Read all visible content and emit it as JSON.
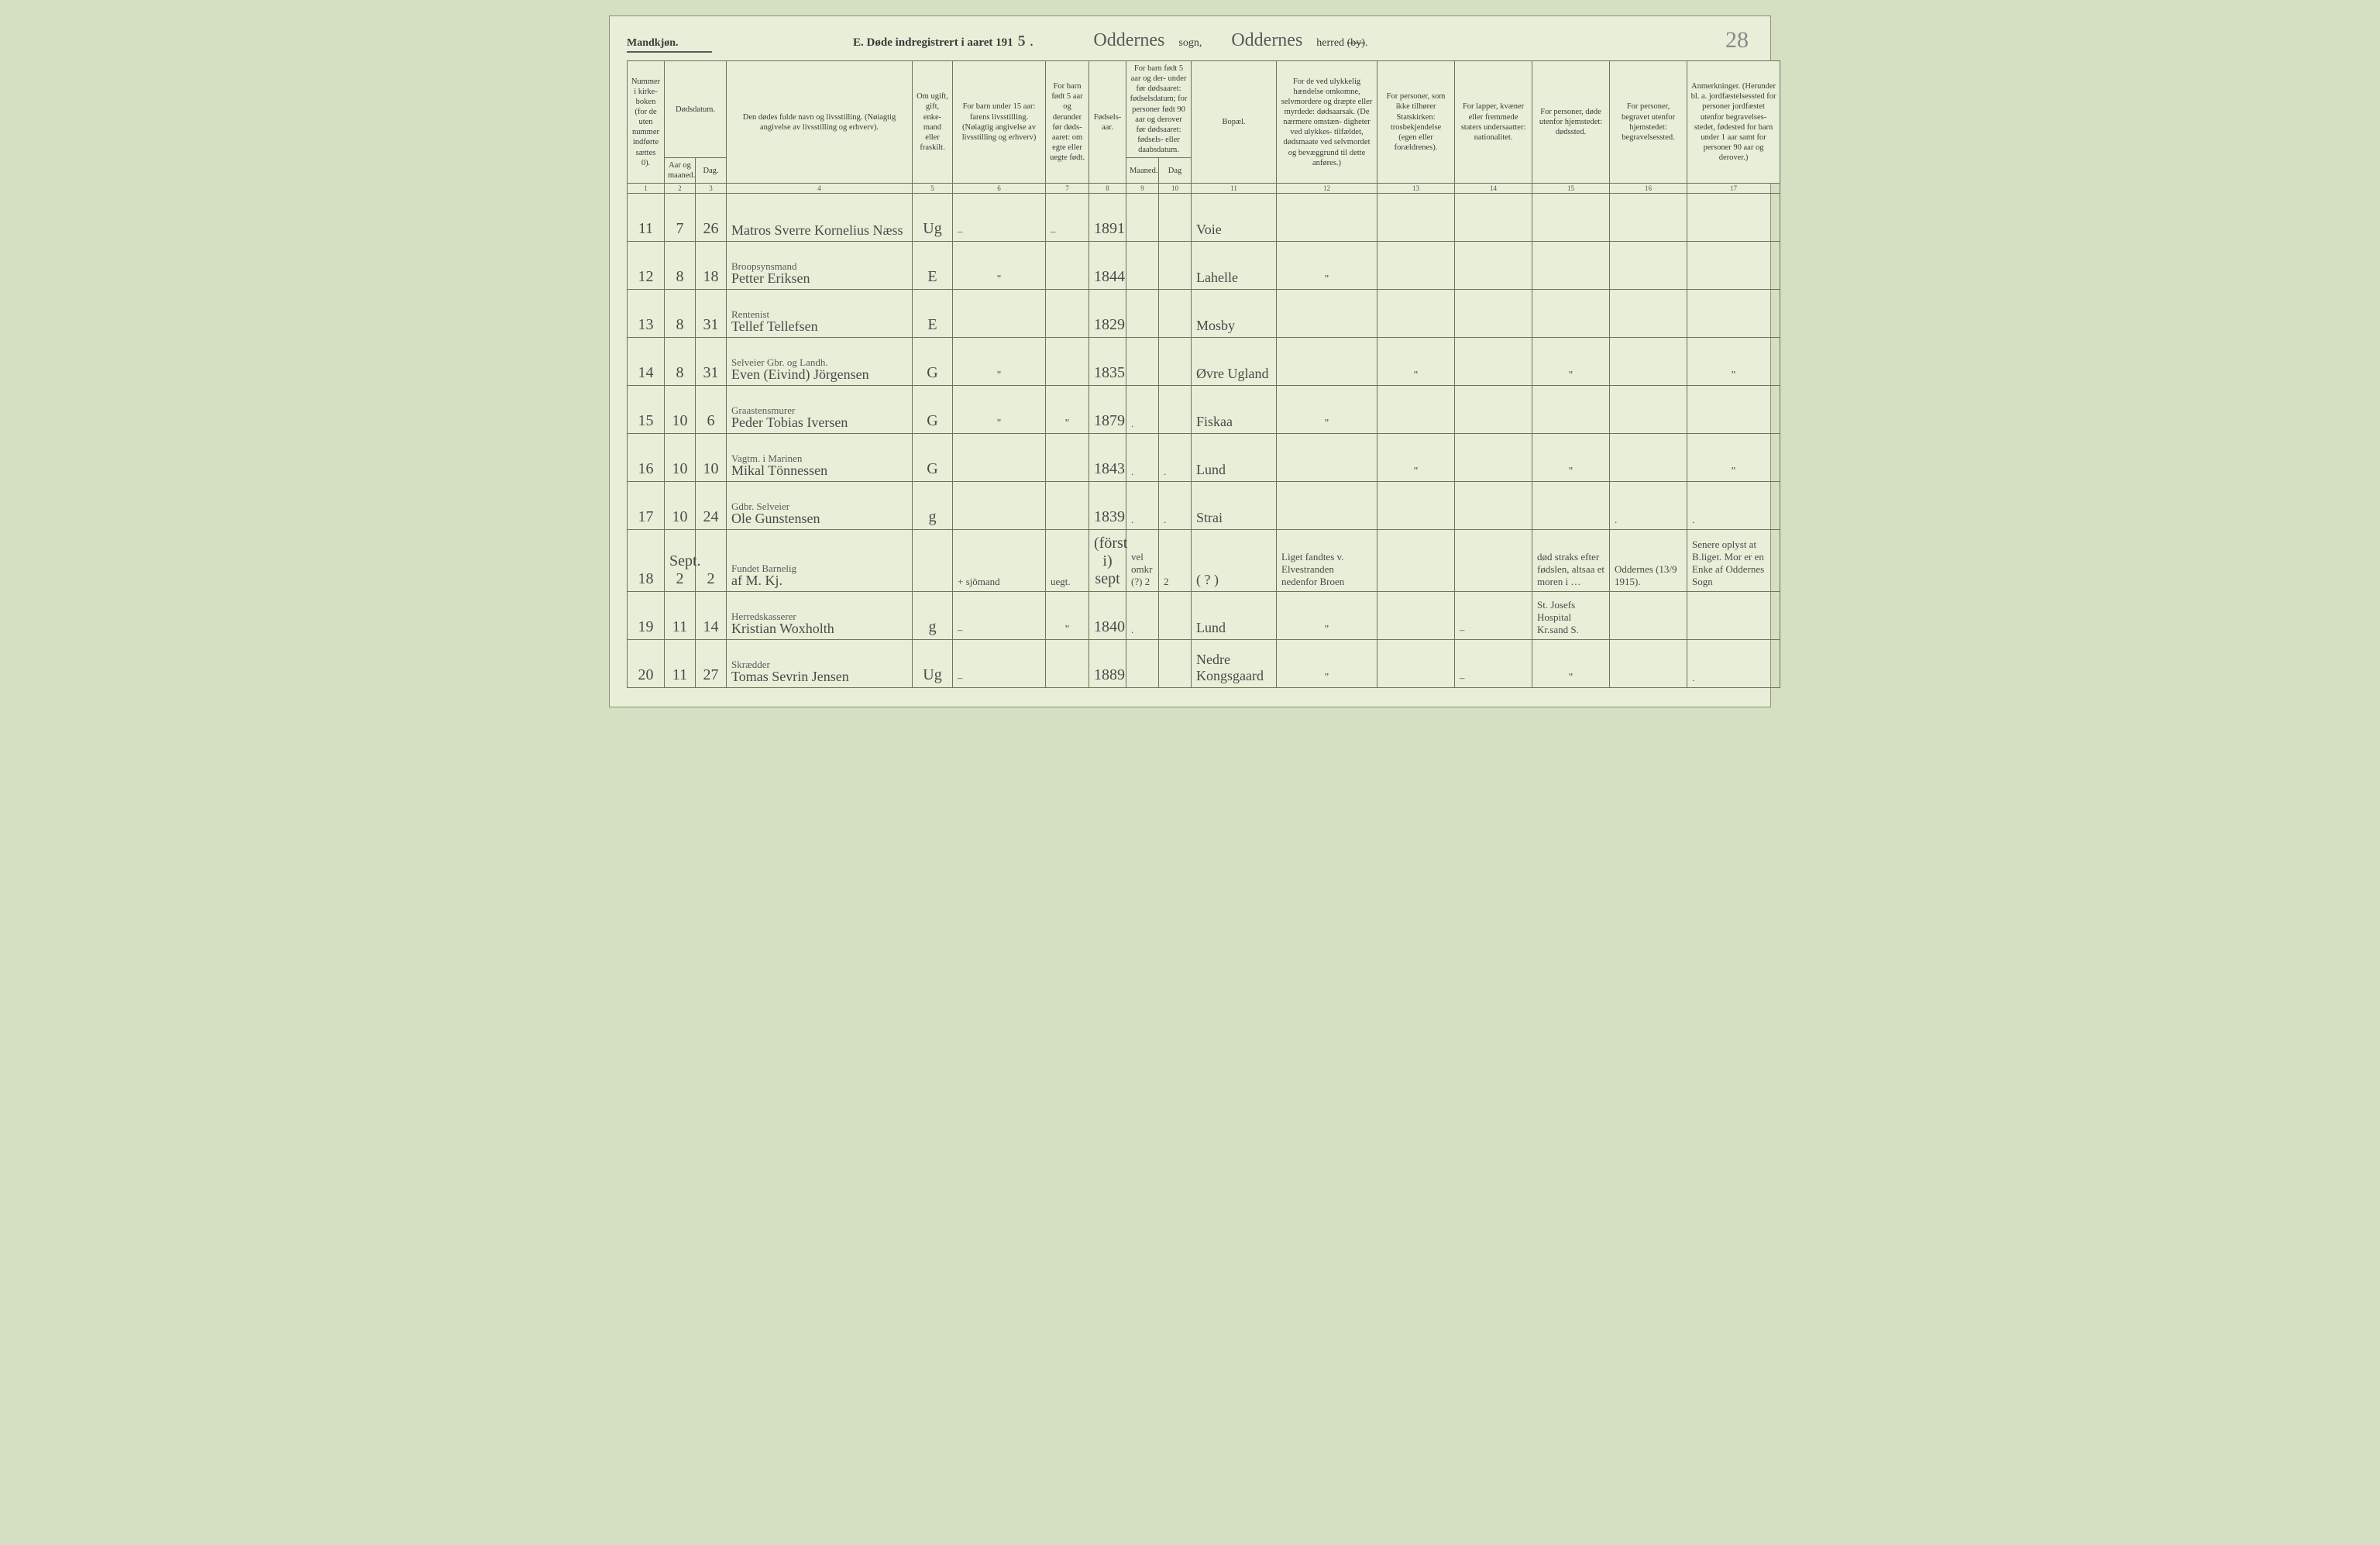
{
  "header": {
    "gender": "Mandkjøn.",
    "section_letter": "E.",
    "title_prefix": "Døde indregistrert i aaret 191",
    "year_suffix": "5",
    "parish_script": "Oddernes",
    "parish_label": "sogn,",
    "district_script": "Oddernes",
    "district_label_a": "herred",
    "district_label_strike": "(by)",
    "page_number": "28"
  },
  "columns": {
    "c1": "Nummer i kirke-\nboken (for de uten nummer indførte sættes 0).",
    "c2_3_top": "Dødsdatum.",
    "c2": "Aar og maaned.",
    "c3": "Dag.",
    "c4": "Den dødes fulde navn og livsstilling.\n(Nøiagtig angivelse av livsstilling og erhverv).",
    "c5": "Om ugift, gift, enke-\nmand eller fraskilt.",
    "c6": "For barn under 15 aar:\nfarens livsstilling.\n(Nøiagtig angivelse av livsstilling og erhverv)",
    "c7": "For barn født 5 aar og derunder før døds-\naaret: om egte eller uegte født.",
    "c8": "Fødsels-\naar.",
    "c9_10_top": "For barn født 5 aar og der-\nunder før dødsaaret:\nfødselsdatum;\nfor personer født 90 aar og derover før dødsaaret:\nfødsels- eller daabsdatum.",
    "c9": "Maaned.",
    "c10": "Dag",
    "c11": "Bopæl.",
    "c12": "For de ved ulykkelig hændelse omkomne, selvmordere og dræpte eller myrdede:\ndødsaarsak.\n(De nærmere omstæn-\ndigheter ved ulykkes-\ntilfældet, dødsmaate ved selvmordet og bevæggrund til dette anføres.)",
    "c13": "For personer, som ikke tilhører Statskirken:\ntrosbekjendelse\n(egen eller forældrenes).",
    "c14": "For lapper, kvæner eller fremmede staters undersaatter:\nnationalitet.",
    "c15": "For personer, døde utenfor hjemstedet:\ndødssted.",
    "c16": "For personer, begravet utenfor hjemstedet:\nbegravelsessted.",
    "c17": "Anmerkninger.\n(Herunder bl. a. jordfæstelsessted for personer jordfæstet utenfor begravelses-\nstedet, fødested for barn under 1 aar samt for personer 90 aar og derover.)"
  },
  "colnums": [
    "1",
    "2",
    "3",
    "4",
    "5",
    "6",
    "7",
    "8",
    "9",
    "10",
    "11",
    "12",
    "13",
    "14",
    "15",
    "16",
    "17"
  ],
  "rows": [
    {
      "n": "11",
      "mth": "7",
      "day": "26",
      "occ": "",
      "name": "Matros Sverre Kornelius Næss",
      "ms": "Ug",
      "c6": "–",
      "c7": "–",
      "year": "1891",
      "c9": "",
      "c10": "",
      "place": "Voie",
      "c12": "",
      "c13": "",
      "c14": "",
      "c15": "",
      "c16": "",
      "c17": ""
    },
    {
      "n": "12",
      "mth": "8",
      "day": "18",
      "occ": "Broopsynsmand",
      "name": "Petter Eriksen",
      "ms": "E",
      "c6": "\"",
      "c7": "",
      "year": "1844",
      "c9": "",
      "c10": "",
      "place": "Lahelle",
      "c12": "\"",
      "c13": "",
      "c14": "",
      "c15": "",
      "c16": "",
      "c17": ""
    },
    {
      "n": "13",
      "mth": "8",
      "day": "31",
      "occ": "Rentenist",
      "name": "Tellef Tellefsen",
      "ms": "E",
      "c6": "",
      "c7": "",
      "year": "1829",
      "c9": "",
      "c10": "",
      "place": "Mosby",
      "c12": "",
      "c13": "",
      "c14": "",
      "c15": "",
      "c16": "",
      "c17": ""
    },
    {
      "n": "14",
      "mth": "8",
      "day": "31",
      "occ": "Selveier Gbr. og Landh.",
      "name": "Even (Eivind) Jörgensen",
      "ms": "G",
      "c6": "\"",
      "c7": "",
      "year": "1835",
      "c9": "",
      "c10": "",
      "place": "Øvre Ugland",
      "c12": "",
      "c13": "\"",
      "c14": "",
      "c15": "\"",
      "c16": "",
      "c17": "\""
    },
    {
      "n": "15",
      "mth": "10",
      "day": "6",
      "occ": "Graastensmurer",
      "name": "Peder Tobias Iversen",
      "ms": "G",
      "c6": "\"",
      "c7": "\"",
      "year": "1879",
      "c9": ".",
      "c10": "",
      "place": "Fiskaa",
      "c12": "\"",
      "c13": "",
      "c14": "",
      "c15": "",
      "c16": "",
      "c17": ""
    },
    {
      "n": "16",
      "mth": "10",
      "day": "10",
      "occ": "Vagtm. i Marinen",
      "name": "Mikal Tönnessen",
      "ms": "G",
      "c6": "",
      "c7": "",
      "year": "1843",
      "c9": ".",
      "c10": ".",
      "place": "Lund",
      "c12": "",
      "c13": "\"",
      "c14": "",
      "c15": "\"",
      "c16": "",
      "c17": "\""
    },
    {
      "n": "17",
      "mth": "10",
      "day": "24",
      "occ": "Gdbr. Selveier",
      "name": "Ole Gunstensen",
      "ms": "g",
      "c6": "",
      "c7": "",
      "year": "1839",
      "c9": ".",
      "c10": ".",
      "place": "Strai",
      "c12": "",
      "c13": "",
      "c14": "",
      "c15": "",
      "c16": ".",
      "c17": "."
    },
    {
      "n": "18",
      "mth": "Sept. 2",
      "day": "2",
      "occ": "Fundet Barnelig",
      "name": "af M. Kj.",
      "ms": "",
      "c6": "+ sjömand",
      "c7": "uegt.",
      "year": "(först i) sept",
      "c9": "vel omkr (?) 2",
      "c10": "2",
      "place": "( ? )",
      "c12": "Liget fandtes v. Elvestranden nedenfor Broen",
      "c13": "",
      "c14": "",
      "c15": "død straks efter fødslen, altsaa et moren i …",
      "c16": "Oddernes (13/9 1915).",
      "c17": "Senere oplyst at B.liget. Mor er en Enke af Oddernes Sogn"
    },
    {
      "n": "19",
      "mth": "11",
      "day": "14",
      "occ": "Herredskasserer",
      "name": "Kristian Woxholth",
      "ms": "g",
      "c6": "–",
      "c7": "\"",
      "year": "1840",
      "c9": ".",
      "c10": "",
      "place": "Lund",
      "c12": "\"",
      "c13": "",
      "c14": "–",
      "c15": "St. Josefs Hospital Kr.sand S.",
      "c16": "",
      "c17": ""
    },
    {
      "n": "20",
      "mth": "11",
      "day": "27",
      "occ": "Skrædder",
      "name": "Tomas Sevrin Jensen",
      "ms": "Ug",
      "c6": "–",
      "c7": "",
      "year": "1889",
      "c9": "",
      "c10": "",
      "place": "Nedre Kongsgaard",
      "c12": "\"",
      "c13": "",
      "c14": "–",
      "c15": "\"",
      "c16": "",
      "c17": "."
    }
  ]
}
